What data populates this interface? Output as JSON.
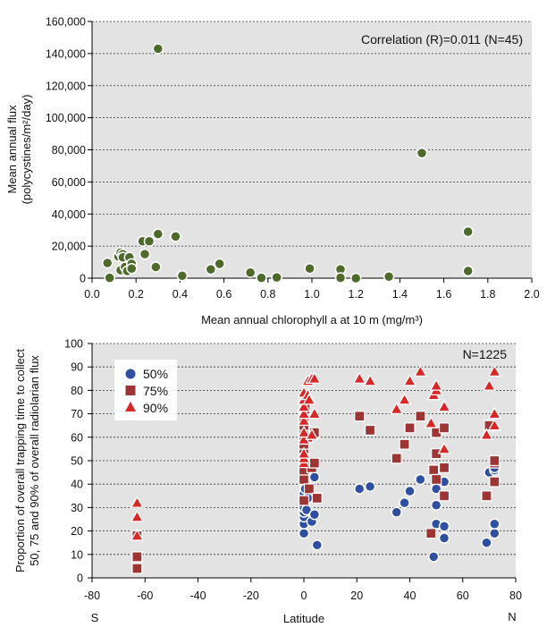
{
  "charts": [
    {
      "chart_data": {
        "type": "scatter",
        "title": "",
        "xlabel": "Mean annual chlorophyll a at 10 m (mg/m³)",
        "ylabel_lines": [
          "Mean annual flux",
          "(polycystines/m²/day)"
        ],
        "annotation": "Correlation (R)=0.011 (N=45)",
        "xlim": [
          0,
          2.0
        ],
        "ylim": [
          0,
          160000
        ],
        "grid": "horizontal dashed",
        "background": "#e3e3e3",
        "point_color": "#4d6a2b",
        "xticks": [
          "0.0",
          "0.2",
          "0.4",
          "0.6",
          "0.8",
          "1.0",
          "1.2",
          "1.4",
          "1.6",
          "1.8",
          "2.0"
        ],
        "yticks": [
          "0",
          "20,000",
          "40,000",
          "60,000",
          "80,000",
          "100,000",
          "120,000",
          "140,000",
          "160,000"
        ],
        "xtick_values": [
          0,
          0.2,
          0.4,
          0.6,
          0.8,
          1.0,
          1.2,
          1.4,
          1.6,
          1.8,
          2.0
        ],
        "ytick_values": [
          0,
          20000,
          40000,
          60000,
          80000,
          100000,
          120000,
          140000,
          160000
        ],
        "series": [
          {
            "values": [
              [
                0.07,
                9500
              ],
              [
                0.08,
                200
              ],
              [
                0.12,
                13500
              ],
              [
                0.13,
                16000
              ],
              [
                0.13,
                5000
              ],
              [
                0.14,
                15000
              ],
              [
                0.14,
                13000
              ],
              [
                0.15,
                7000
              ],
              [
                0.16,
                4500
              ],
              [
                0.17,
                13000
              ],
              [
                0.18,
                9000
              ],
              [
                0.18,
                6000
              ],
              [
                0.23,
                23000
              ],
              [
                0.24,
                15000
              ],
              [
                0.26,
                23000
              ],
              [
                0.29,
                7000
              ],
              [
                0.3,
                27500
              ],
              [
                0.3,
                143000
              ],
              [
                0.38,
                26000
              ],
              [
                0.41,
                1500
              ],
              [
                0.54,
                5500
              ],
              [
                0.58,
                9000
              ],
              [
                0.72,
                3500
              ],
              [
                0.77,
                200
              ],
              [
                0.84,
                500
              ],
              [
                0.99,
                6000
              ],
              [
                1.13,
                5500
              ],
              [
                1.13,
                300
              ],
              [
                1.2,
                0
              ],
              [
                1.35,
                1000
              ],
              [
                1.5,
                78000
              ],
              [
                1.71,
                29000
              ],
              [
                1.71,
                4500
              ]
            ]
          }
        ]
      }
    },
    {
      "chart_data": {
        "type": "scatter",
        "title": "",
        "xlabel": "Latitude",
        "ylabel_lines": [
          "Proportion of overall trapping time to collect",
          "50, 75 and 90% of overall radiolarian flux"
        ],
        "annotation": "N=1225",
        "xlim": [
          -80,
          80
        ],
        "ylim": [
          0,
          100
        ],
        "grid": "horizontal dashed",
        "background": "#e3e3e3",
        "direction_labels": [
          "S",
          "N"
        ],
        "xticks": [
          "-80",
          "-60",
          "-40",
          "-20",
          "0",
          "20",
          "40",
          "60",
          "80"
        ],
        "yticks": [
          "0",
          "10",
          "20",
          "30",
          "40",
          "50",
          "60",
          "70",
          "80",
          "90",
          "100"
        ],
        "xtick_values": [
          -80,
          -60,
          -40,
          -20,
          0,
          20,
          40,
          60,
          80
        ],
        "ytick_values": [
          0,
          10,
          20,
          30,
          40,
          50,
          60,
          70,
          80,
          90,
          100
        ],
        "legend_position": "top-left",
        "series": [
          {
            "name": "50%",
            "marker": "circle",
            "color": "#2f4fa0",
            "values": [
              [
                -63,
                18
              ],
              [
                0,
                19
              ],
              [
                0,
                23
              ],
              [
                0,
                26
              ],
              [
                0,
                28
              ],
              [
                0,
                30
              ],
              [
                0,
                33
              ],
              [
                0,
                36
              ],
              [
                0.5,
                38
              ],
              [
                1,
                29
              ],
              [
                1.5,
                34
              ],
              [
                3,
                24
              ],
              [
                4,
                27
              ],
              [
                4,
                43
              ],
              [
                5,
                14
              ],
              [
                21,
                38
              ],
              [
                25,
                39
              ],
              [
                35,
                28
              ],
              [
                38,
                32
              ],
              [
                40,
                37
              ],
              [
                44,
                42
              ],
              [
                49,
                9
              ],
              [
                50,
                23
              ],
              [
                50,
                31
              ],
              [
                50,
                38
              ],
              [
                53,
                17
              ],
              [
                53,
                22
              ],
              [
                53,
                41
              ],
              [
                69,
                15
              ],
              [
                70,
                45
              ],
              [
                72,
                19
              ],
              [
                72,
                23
              ],
              [
                72,
                46
              ],
              [
                72,
                47
              ]
            ]
          },
          {
            "name": "75%",
            "marker": "square",
            "color": "#9e3535",
            "values": [
              [
                -63,
                4
              ],
              [
                -63,
                9
              ],
              [
                -63,
                18
              ],
              [
                0,
                33
              ],
              [
                0,
                42
              ],
              [
                0,
                46
              ],
              [
                0,
                50
              ],
              [
                0,
                52
              ],
              [
                0,
                55
              ],
              [
                0,
                57
              ],
              [
                0,
                60
              ],
              [
                0,
                63
              ],
              [
                0,
                65
              ],
              [
                0,
                68
              ],
              [
                0.5,
                72
              ],
              [
                1.5,
                60
              ],
              [
                2,
                38
              ],
              [
                3,
                47
              ],
              [
                4,
                49
              ],
              [
                4,
                62
              ],
              [
                5,
                34
              ],
              [
                21,
                69
              ],
              [
                25,
                63
              ],
              [
                35,
                51
              ],
              [
                38,
                57
              ],
              [
                40,
                64
              ],
              [
                44,
                69
              ],
              [
                48,
                19
              ],
              [
                49,
                46
              ],
              [
                50,
                42
              ],
              [
                50,
                53
              ],
              [
                50,
                62
              ],
              [
                53,
                35
              ],
              [
                53,
                47
              ],
              [
                53,
                64
              ],
              [
                69,
                35
              ],
              [
                70,
                65
              ],
              [
                72,
                41
              ],
              [
                72,
                49
              ],
              [
                72,
                50
              ]
            ]
          },
          {
            "name": "90%",
            "marker": "triangle",
            "color": "#d72727",
            "values": [
              [
                -63,
                18
              ],
              [
                -63,
                26
              ],
              [
                -63,
                32
              ],
              [
                0,
                49
              ],
              [
                0,
                51
              ],
              [
                0,
                53
              ],
              [
                0,
                59
              ],
              [
                0,
                62
              ],
              [
                0,
                67
              ],
              [
                0,
                70
              ],
              [
                0,
                73
              ],
              [
                0,
                76
              ],
              [
                0,
                79
              ],
              [
                1.5,
                78
              ],
              [
                1.5,
                84
              ],
              [
                2,
                76
              ],
              [
                3,
                61
              ],
              [
                3,
                85
              ],
              [
                4,
                70
              ],
              [
                4,
                85
              ],
              [
                21,
                85
              ],
              [
                25,
                84
              ],
              [
                35,
                72
              ],
              [
                38,
                76
              ],
              [
                40,
                84
              ],
              [
                44,
                88
              ],
              [
                48,
                66
              ],
              [
                49,
                78
              ],
              [
                50,
                80
              ],
              [
                50,
                82
              ],
              [
                53,
                55
              ],
              [
                53,
                73
              ],
              [
                69,
                61
              ],
              [
                70,
                82
              ],
              [
                72,
                65
              ],
              [
                72,
                70
              ],
              [
                72,
                88
              ]
            ]
          }
        ]
      }
    }
  ]
}
